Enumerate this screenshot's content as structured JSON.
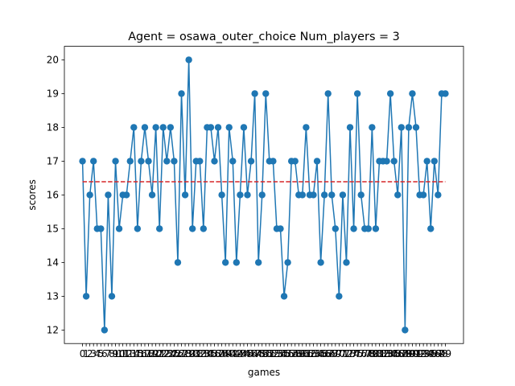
{
  "chart_data": {
    "type": "line",
    "title": "Agent = osawa_outer_choice  Num_players = 3",
    "xlabel": "games",
    "ylabel": "scores",
    "x": [
      0,
      1,
      2,
      3,
      4,
      5,
      6,
      7,
      8,
      9,
      10,
      11,
      12,
      13,
      14,
      15,
      16,
      17,
      18,
      19,
      20,
      21,
      22,
      23,
      24,
      25,
      26,
      27,
      28,
      29,
      30,
      31,
      32,
      33,
      34,
      35,
      36,
      37,
      38,
      39,
      40,
      41,
      42,
      43,
      44,
      45,
      46,
      47,
      48,
      49,
      50,
      51,
      52,
      53,
      54,
      55,
      56,
      57,
      58,
      59,
      60,
      61,
      62,
      63,
      64,
      65,
      66,
      67,
      68,
      69,
      70,
      71,
      72,
      73,
      74,
      75,
      76,
      77,
      78,
      79,
      80,
      81,
      82,
      83,
      84,
      85,
      86,
      87,
      88,
      89,
      90,
      91,
      92,
      93,
      94,
      95,
      96,
      97,
      98,
      99
    ],
    "xticks": [
      "0",
      "1",
      "2",
      "3",
      "4",
      "5",
      "6",
      "7",
      "8",
      "9",
      "10",
      "11",
      "12",
      "13",
      "14",
      "15",
      "16",
      "17",
      "18",
      "19",
      "20",
      "21",
      "22",
      "23",
      "24",
      "25",
      "26",
      "27",
      "28",
      "29",
      "30",
      "31",
      "32",
      "33",
      "34",
      "35",
      "36",
      "37",
      "38",
      "39",
      "40",
      "41",
      "42",
      "43",
      "44",
      "45",
      "46",
      "47",
      "48",
      "49",
      "50",
      "51",
      "52",
      "53",
      "54",
      "55",
      "56",
      "57",
      "58",
      "59",
      "60",
      "61",
      "62",
      "63",
      "64",
      "65",
      "66",
      "67",
      "68",
      "69",
      "70",
      "71",
      "72",
      "73",
      "74",
      "75",
      "76",
      "77",
      "78",
      "79",
      "80",
      "81",
      "82",
      "83",
      "84",
      "85",
      "86",
      "87",
      "88",
      "89",
      "90",
      "91",
      "92",
      "93",
      "94",
      "95",
      "96",
      "97",
      "98",
      "99"
    ],
    "yticks": [
      "12",
      "13",
      "14",
      "15",
      "16",
      "17",
      "18",
      "19",
      "20"
    ],
    "ylim": [
      11.6,
      20.4
    ],
    "xlim": [
      -4.95,
      103.95
    ],
    "series": [
      {
        "values": [
          17,
          13,
          16,
          17,
          15,
          15,
          12,
          16,
          13,
          17,
          15,
          16,
          16,
          17,
          18,
          15,
          17,
          18,
          17,
          16,
          18,
          15,
          18,
          17,
          18,
          17,
          14,
          19,
          16,
          20,
          15,
          17,
          17,
          15,
          18,
          18,
          17,
          18,
          16,
          14,
          18,
          17,
          14,
          16,
          18,
          16,
          17,
          19,
          14,
          16,
          19,
          17,
          17,
          15,
          15,
          13,
          14,
          17,
          17,
          16,
          16,
          18,
          16,
          16,
          17,
          14,
          16,
          19,
          16,
          15,
          13,
          16,
          14,
          18,
          15,
          19,
          16,
          15,
          15,
          18,
          15,
          17,
          17,
          17,
          19,
          17,
          16,
          18,
          12,
          18,
          19,
          18,
          16,
          16,
          17,
          15,
          17,
          16,
          19,
          19
        ],
        "color": "#1f77b4",
        "marker": "circle"
      }
    ],
    "mean_line": {
      "value": 16.39,
      "color": "#d62728",
      "style": "dashed"
    },
    "grid": false,
    "legend": "none"
  }
}
